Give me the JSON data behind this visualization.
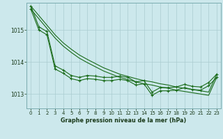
{
  "title": "Graphe pression niveau de la mer (hPa)",
  "bg_color": "#cce8ec",
  "grid_color": "#aaccd0",
  "line_color": "#1a6b1a",
  "x_ticks": [
    0,
    1,
    2,
    3,
    4,
    5,
    6,
    7,
    8,
    9,
    10,
    11,
    12,
    13,
    14,
    15,
    16,
    17,
    18,
    19,
    20,
    21,
    22,
    23
  ],
  "y_ticks": [
    1013,
    1014,
    1015
  ],
  "ylim": [
    1012.55,
    1015.85
  ],
  "xlim": [
    -0.5,
    23.5
  ],
  "smooth_line1": [
    1015.75,
    1015.45,
    1015.15,
    1014.85,
    1014.6,
    1014.4,
    1014.22,
    1014.08,
    1013.95,
    1013.82,
    1013.72,
    1013.62,
    1013.55,
    1013.48,
    1013.42,
    1013.38,
    1013.32,
    1013.28,
    1013.22,
    1013.18,
    1013.14,
    1013.1,
    1013.06,
    1013.62
  ],
  "smooth_line2": [
    1015.65,
    1015.35,
    1015.05,
    1014.75,
    1014.5,
    1014.3,
    1014.12,
    1013.98,
    1013.85,
    1013.72,
    1013.62,
    1013.52,
    1013.45,
    1013.38,
    1013.32,
    1013.28,
    1013.22,
    1013.18,
    1013.12,
    1013.08,
    1013.04,
    1013.0,
    1012.96,
    1013.52
  ],
  "marker_line1": [
    1015.75,
    1015.1,
    1014.95,
    1013.88,
    1013.75,
    1013.58,
    1013.52,
    1013.58,
    1013.56,
    1013.52,
    1013.52,
    1013.56,
    1013.52,
    1013.38,
    1013.42,
    1013.06,
    1013.2,
    1013.2,
    1013.22,
    1013.3,
    1013.24,
    1013.22,
    1013.36,
    1013.62
  ],
  "marker_line2": [
    1015.65,
    1015.0,
    1014.85,
    1013.78,
    1013.65,
    1013.48,
    1013.42,
    1013.48,
    1013.46,
    1013.42,
    1013.42,
    1013.46,
    1013.42,
    1013.28,
    1013.32,
    1012.96,
    1013.1,
    1013.1,
    1013.12,
    1013.2,
    1013.14,
    1013.12,
    1013.26,
    1013.52
  ]
}
